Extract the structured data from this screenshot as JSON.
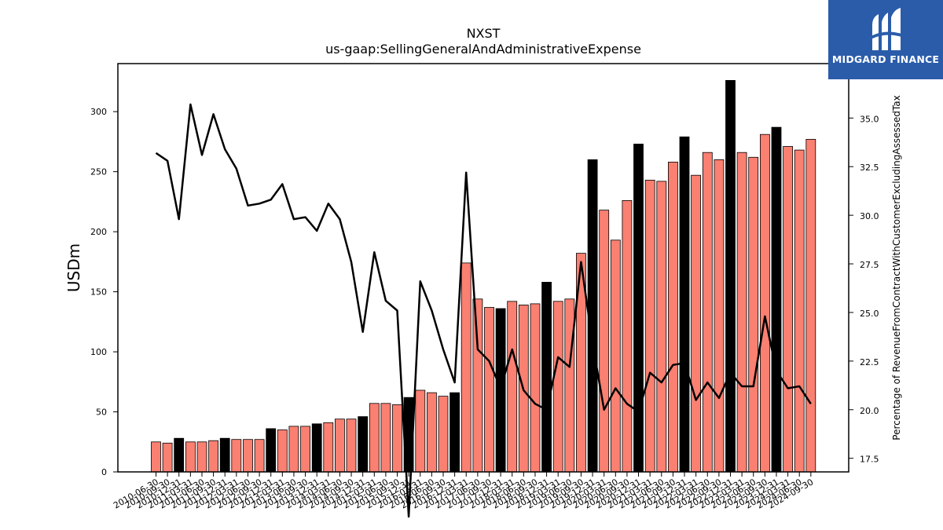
{
  "chart_data": {
    "type": "bar",
    "title": "NXST",
    "subtitle": "us-gaap:SellingGeneralAndAdministrativeExpense",
    "ylabel": "USDm",
    "y2label": "Percentage of RevenueFromContractWithCustomerExcludingAssessedTax",
    "ylim": [
      0,
      340
    ],
    "y2lim": [
      16.8,
      37.8
    ],
    "yticks": [
      0,
      50,
      100,
      150,
      200,
      250,
      300
    ],
    "y2ticks": [
      "17.5",
      "20.0",
      "22.5",
      "25.0",
      "27.5",
      "30.0",
      "32.5",
      "35.0"
    ],
    "categories": [
      "2010-06-30",
      "2010-09-30",
      "2010-12-31",
      "2011-03-31",
      "2011-06-30",
      "2011-09-30",
      "2011-12-31",
      "2012-03-31",
      "2012-06-30",
      "2012-09-30",
      "2012-12-31",
      "2013-03-31",
      "2013-06-30",
      "2013-09-30",
      "2013-12-31",
      "2014-03-31",
      "2014-06-30",
      "2014-09-30",
      "2014-12-31",
      "2015-03-31",
      "2015-06-30",
      "2015-09-30",
      "2015-12-31",
      "2016-03-31",
      "2016-06-30",
      "2016-09-30",
      "2016-12-31",
      "2017-03-31",
      "2017-06-30",
      "2017-09-30",
      "2017-12-31",
      "2018-03-31",
      "2018-06-30",
      "2018-09-30",
      "2018-12-31",
      "2019-03-31",
      "2019-06-30",
      "2019-09-30",
      "2019-12-31",
      "2020-03-31",
      "2020-06-30",
      "2020-09-30",
      "2020-12-31",
      "2021-03-31",
      "2021-06-30",
      "2021-09-30",
      "2021-12-31",
      "2022-03-31",
      "2022-06-30",
      "2022-09-30",
      "2022-12-31",
      "2023-03-31",
      "2023-06-30",
      "2023-09-30",
      "2023-12-31",
      "2024-03-31",
      "2024-06-30",
      "2024-09-30"
    ],
    "series": [
      {
        "values": [
          25,
          24,
          28,
          25,
          25,
          26,
          28,
          27,
          27,
          27,
          36,
          35,
          38,
          38,
          40,
          41,
          44,
          44,
          46,
          57,
          57,
          56,
          62,
          68,
          66,
          63,
          66,
          174,
          144,
          137,
          136,
          142,
          139,
          140,
          158,
          142,
          144,
          182,
          260,
          218,
          193,
          226,
          273,
          243,
          242,
          258,
          279,
          247,
          266,
          260,
          326,
          266,
          262,
          281,
          287,
          271,
          268,
          277
        ],
        "highlight": [
          false,
          false,
          true,
          false,
          false,
          false,
          true,
          false,
          false,
          false,
          true,
          false,
          false,
          false,
          true,
          false,
          false,
          false,
          true,
          false,
          false,
          false,
          true,
          false,
          false,
          false,
          true,
          false,
          false,
          false,
          true,
          false,
          false,
          false,
          true,
          false,
          false,
          false,
          true,
          false,
          false,
          false,
          true,
          false,
          false,
          false,
          true,
          false,
          false,
          false,
          true,
          false,
          false,
          false,
          true,
          false,
          false,
          false
        ]
      },
      {
        "axis": "right",
        "type": "line",
        "values": [
          33.2,
          32.8,
          29.8,
          35.7,
          33.1,
          35.2,
          33.4,
          32.4,
          30.5,
          30.6,
          30.8,
          31.6,
          29.8,
          29.9,
          29.2,
          30.6,
          29.8,
          27.6,
          24.0,
          28.1,
          25.6,
          25.1,
          14.5,
          26.6,
          25.1,
          23.1,
          21.4,
          32.2,
          23.1,
          22.5,
          21.1,
          23.1,
          21.0,
          20.3,
          20.0,
          22.7,
          22.2,
          27.6,
          23.4,
          20.0,
          21.1,
          20.3,
          19.9,
          21.9,
          21.4,
          22.3,
          22.4,
          20.5,
          21.4,
          20.6,
          21.9,
          21.2,
          21.2,
          24.8,
          22.0,
          21.1,
          21.2,
          20.3
        ]
      }
    ],
    "colors": {
      "bar": "#fa8072",
      "highlight": "#000000",
      "line": "#000000"
    }
  },
  "brand": {
    "name": "MIDGARD FINANCE",
    "color": "#2a5caa"
  }
}
